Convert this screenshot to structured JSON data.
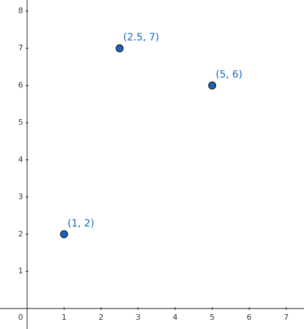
{
  "chart_data": {
    "type": "scatter",
    "x": [
      2.5,
      5,
      1
    ],
    "y": [
      7,
      6,
      2
    ],
    "value_labels": [
      "(2.5, 7)",
      "(5, 6)",
      "(1, 2)"
    ],
    "color": "#1565c0",
    "xlim": [
      -0.73,
      7.48
    ],
    "ylim": [
      -0.55,
      8.3
    ],
    "xticks": [
      0,
      1,
      2,
      3,
      4,
      5,
      6,
      7
    ],
    "yticks": [
      1,
      2,
      3,
      4,
      5,
      6,
      7,
      8
    ],
    "grid": false
  }
}
